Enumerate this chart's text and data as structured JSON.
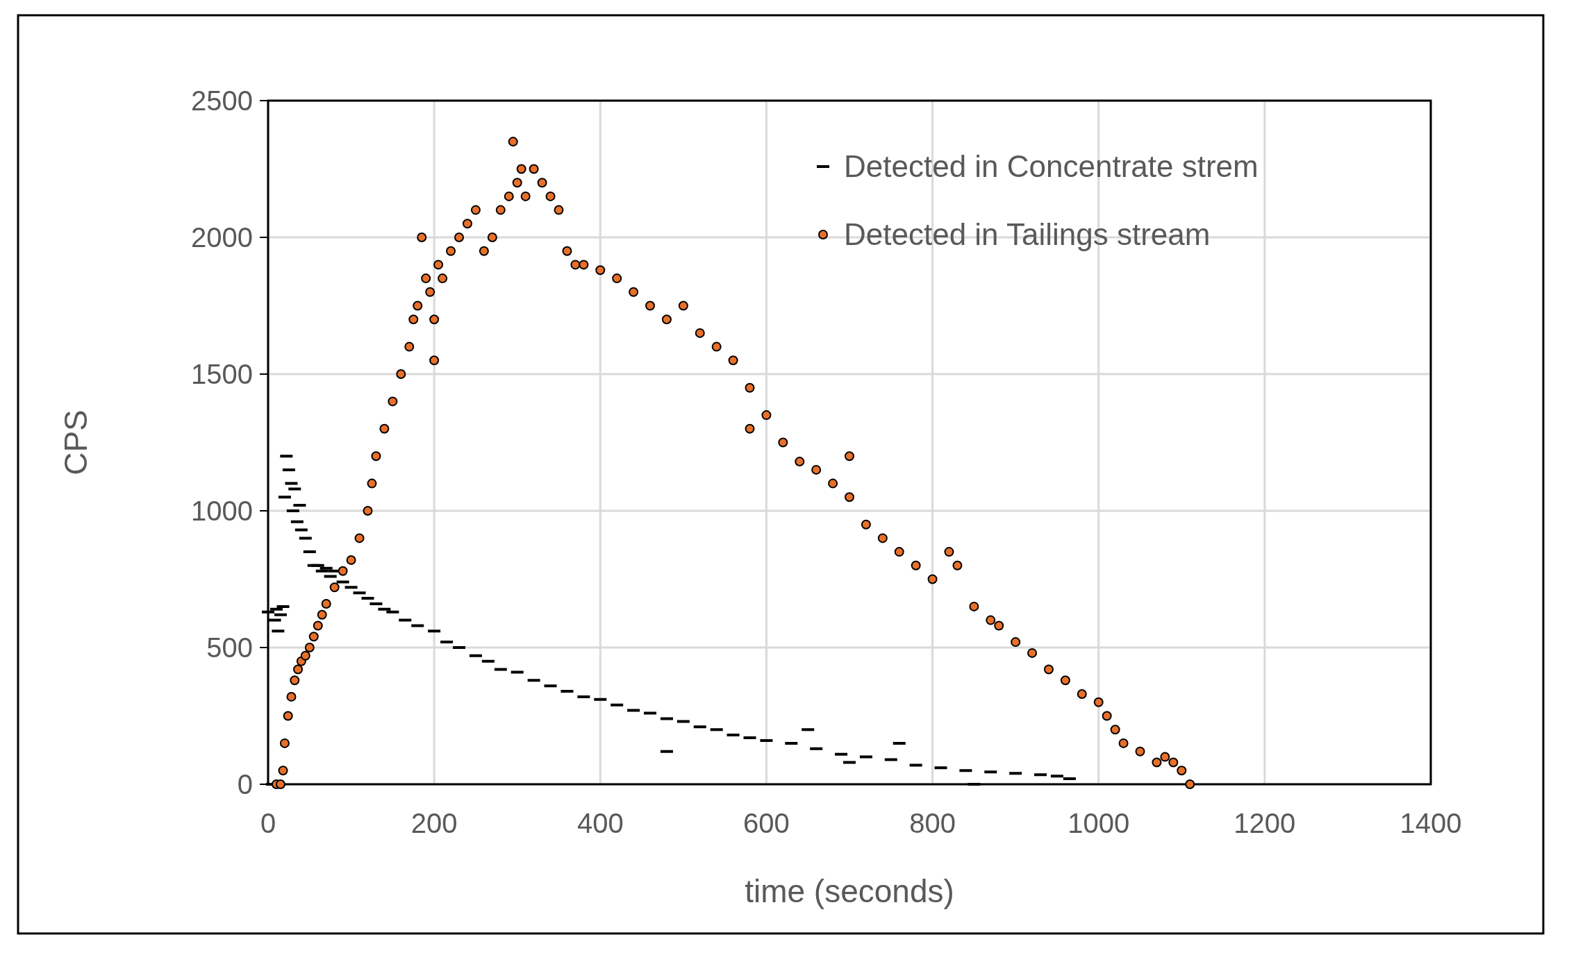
{
  "chart_data": {
    "type": "scatter",
    "xlabel": "time (seconds)",
    "ylabel": "CPS",
    "xlim": [
      0,
      1400
    ],
    "ylim": [
      0,
      2500
    ],
    "xticks": [
      0,
      200,
      400,
      600,
      800,
      1000,
      1200,
      1400
    ],
    "yticks": [
      0,
      500,
      1000,
      1500,
      2000,
      2500
    ],
    "grid": true,
    "legend": "top right",
    "series": [
      {
        "name": "Detected in Concentrate strem",
        "color": "#000000",
        "x": [
          0,
          5,
          8,
          10,
          12,
          15,
          18,
          20,
          22,
          25,
          28,
          30,
          32,
          35,
          38,
          40,
          45,
          50,
          55,
          60,
          65,
          70,
          75,
          80,
          90,
          100,
          110,
          120,
          130,
          140,
          150,
          165,
          180,
          200,
          215,
          230,
          250,
          265,
          280,
          300,
          320,
          340,
          360,
          380,
          400,
          420,
          440,
          460,
          480,
          500,
          520,
          540,
          560,
          580,
          600,
          630,
          660,
          690,
          720,
          750,
          780,
          810,
          840,
          870,
          900,
          930,
          950,
          965,
          650,
          700,
          760,
          480,
          850
        ],
        "values": [
          630,
          0,
          600,
          640,
          560,
          620,
          650,
          1050,
          1200,
          1150,
          1100,
          1000,
          1080,
          960,
          1020,
          930,
          900,
          850,
          800,
          800,
          780,
          790,
          760,
          780,
          740,
          720,
          700,
          680,
          660,
          640,
          630,
          600,
          580,
          560,
          520,
          500,
          470,
          450,
          420,
          410,
          380,
          360,
          340,
          320,
          310,
          290,
          270,
          260,
          240,
          230,
          210,
          200,
          180,
          170,
          160,
          150,
          130,
          110,
          100,
          90,
          70,
          60,
          50,
          45,
          40,
          35,
          30,
          20,
          200,
          80,
          150,
          120,
          0
        ]
      },
      {
        "name": "Detected in Tailings stream",
        "color": "#e8702a",
        "marker": "circle",
        "x": [
          10,
          15,
          18,
          20,
          24,
          28,
          32,
          36,
          40,
          45,
          50,
          55,
          60,
          65,
          70,
          80,
          90,
          100,
          110,
          120,
          125,
          130,
          140,
          150,
          160,
          170,
          175,
          180,
          185,
          190,
          195,
          200,
          205,
          210,
          220,
          230,
          240,
          250,
          260,
          270,
          280,
          290,
          295,
          300,
          305,
          310,
          320,
          330,
          340,
          350,
          360,
          370,
          380,
          400,
          420,
          440,
          460,
          480,
          500,
          520,
          540,
          560,
          580,
          600,
          620,
          640,
          660,
          680,
          700,
          720,
          740,
          760,
          780,
          800,
          820,
          830,
          850,
          870,
          880,
          900,
          920,
          940,
          960,
          980,
          1000,
          1010,
          1020,
          1030,
          1050,
          1070,
          1080,
          1090,
          1100,
          1110,
          580,
          700,
          200
        ],
        "values": [
          0,
          0,
          50,
          150,
          250,
          320,
          380,
          420,
          450,
          470,
          500,
          540,
          580,
          620,
          660,
          720,
          780,
          820,
          900,
          1000,
          1100,
          1200,
          1300,
          1400,
          1500,
          1600,
          1700,
          1750,
          2000,
          1850,
          1800,
          1700,
          1900,
          1850,
          1950,
          2000,
          2050,
          2100,
          1950,
          2000,
          2100,
          2150,
          2350,
          2200,
          2250,
          2150,
          2250,
          2200,
          2150,
          2100,
          1950,
          1900,
          1900,
          1880,
          1850,
          1800,
          1750,
          1700,
          1750,
          1650,
          1600,
          1550,
          1450,
          1350,
          1250,
          1180,
          1150,
          1100,
          1050,
          950,
          900,
          850,
          800,
          750,
          850,
          800,
          650,
          600,
          580,
          520,
          480,
          420,
          380,
          330,
          300,
          250,
          200,
          150,
          120,
          80,
          100,
          80,
          50,
          0,
          1300,
          1200,
          1550
        ]
      }
    ]
  }
}
